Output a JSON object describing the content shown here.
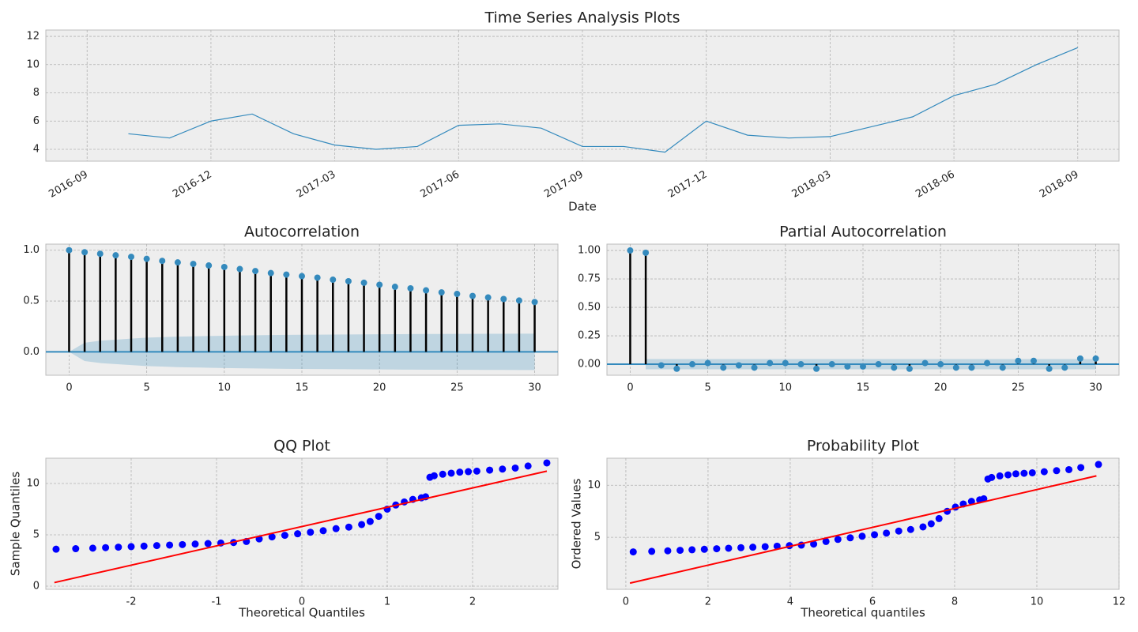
{
  "chart_data": [
    {
      "type": "line",
      "title": "Time Series Analysis Plots",
      "xlabel": "Date",
      "x": [
        "2016-10",
        "2016-11",
        "2016-12",
        "2017-01",
        "2017-02",
        "2017-03",
        "2017-04",
        "2017-05",
        "2017-06",
        "2017-07",
        "2017-08",
        "2017-09",
        "2017-10",
        "2017-11",
        "2017-12",
        "2018-01",
        "2018-02",
        "2018-03",
        "2018-04",
        "2018-05",
        "2018-06",
        "2018-07",
        "2018-08",
        "2018-09"
      ],
      "values": [
        5.1,
        4.8,
        6.0,
        6.5,
        5.1,
        4.3,
        4.0,
        4.2,
        5.7,
        5.8,
        5.5,
        4.2,
        4.2,
        3.8,
        6.0,
        5.0,
        4.8,
        4.9,
        5.6,
        6.3,
        7.8,
        8.6,
        10.0,
        11.2
      ],
      "color": "#348abd",
      "xlim": [
        "2016-08",
        "2018-10"
      ],
      "xticks": [
        "2016-09",
        "2016-12",
        "2017-03",
        "2017-06",
        "2017-09",
        "2017-12",
        "2018-03",
        "2018-06",
        "2018-09"
      ],
      "ylim": [
        3.16,
        12.45
      ],
      "yticks": [
        4,
        6,
        8,
        10,
        12
      ],
      "grid": true
    },
    {
      "type": "stem",
      "title": "Autocorrelation",
      "x": [
        0,
        1,
        2,
        3,
        4,
        5,
        6,
        7,
        8,
        9,
        10,
        11,
        12,
        13,
        14,
        15,
        16,
        17,
        18,
        19,
        20,
        21,
        22,
        23,
        24,
        25,
        26,
        27,
        28,
        29,
        30
      ],
      "values": [
        1.0,
        0.98,
        0.965,
        0.95,
        0.935,
        0.915,
        0.895,
        0.88,
        0.865,
        0.85,
        0.835,
        0.815,
        0.795,
        0.775,
        0.76,
        0.745,
        0.73,
        0.71,
        0.695,
        0.68,
        0.66,
        0.64,
        0.625,
        0.605,
        0.585,
        0.57,
        0.55,
        0.535,
        0.52,
        0.505,
        0.49
      ],
      "confidence": [
        0.0,
        0.09,
        0.11,
        0.12,
        0.13,
        0.14,
        0.145,
        0.15,
        0.153,
        0.156,
        0.159,
        0.161,
        0.163,
        0.165,
        0.167,
        0.168,
        0.169,
        0.17,
        0.171,
        0.172,
        0.173,
        0.174,
        0.175,
        0.176,
        0.176,
        0.177,
        0.177,
        0.178,
        0.178,
        0.179,
        0.179
      ],
      "color": "#348abd",
      "xlim": [
        -1.5,
        31.5
      ],
      "xticks": [
        0,
        5,
        10,
        15,
        20,
        25,
        30
      ],
      "ylim": [
        -0.23,
        1.06
      ],
      "yticks": [
        {
          "value": 0,
          "label": "0.0"
        },
        {
          "value": 0.5,
          "label": "0.5"
        },
        {
          "value": 1,
          "label": "1.0"
        }
      ],
      "grid": true
    },
    {
      "type": "stem",
      "title": "Partial Autocorrelation",
      "x": [
        0,
        1,
        2,
        3,
        4,
        5,
        6,
        7,
        8,
        9,
        10,
        11,
        12,
        13,
        14,
        15,
        16,
        17,
        18,
        19,
        20,
        21,
        22,
        23,
        24,
        25,
        26,
        27,
        28,
        29,
        30
      ],
      "values": [
        1.0,
        0.98,
        -0.01,
        -0.04,
        0.0,
        0.01,
        -0.03,
        -0.01,
        -0.03,
        0.01,
        0.01,
        0.0,
        -0.04,
        0.0,
        -0.02,
        -0.02,
        0.0,
        -0.03,
        -0.04,
        0.01,
        0.0,
        -0.03,
        -0.03,
        0.01,
        -0.03,
        0.03,
        0.03,
        -0.04,
        -0.03,
        0.05,
        0.05
      ],
      "confidence": [
        null,
        0.045,
        0.045,
        0.045,
        0.045,
        0.045,
        0.045,
        0.045,
        0.045,
        0.045,
        0.045,
        0.045,
        0.045,
        0.045,
        0.045,
        0.045,
        0.045,
        0.045,
        0.045,
        0.045,
        0.045,
        0.045,
        0.045,
        0.045,
        0.045,
        0.045,
        0.045,
        0.045,
        0.045,
        0.045,
        0.045
      ],
      "color": "#348abd",
      "xlim": [
        -1.5,
        31.5
      ],
      "xticks": [
        0,
        5,
        10,
        15,
        20,
        25,
        30
      ],
      "ylim": [
        -0.097,
        1.056
      ],
      "yticks": [
        {
          "value": 0,
          "label": "0.00"
        },
        {
          "value": 0.25,
          "label": "0.25"
        },
        {
          "value": 0.5,
          "label": "0.50"
        },
        {
          "value": 0.75,
          "label": "0.75"
        },
        {
          "value": 1,
          "label": "1.00"
        }
      ],
      "grid": true
    },
    {
      "type": "scatter",
      "title": "QQ Plot",
      "xlabel": "Theoretical Quantiles",
      "ylabel": "Sample Quantiles",
      "x": [
        -2.88,
        -2.65,
        -2.45,
        -2.3,
        -2.15,
        -2.0,
        -1.85,
        -1.7,
        -1.55,
        -1.4,
        -1.25,
        -1.1,
        -0.95,
        -0.8,
        -0.65,
        -0.5,
        -0.35,
        -0.2,
        -0.05,
        0.1,
        0.25,
        0.4,
        0.55,
        0.7,
        0.8,
        0.9,
        1.0,
        1.1,
        1.2,
        1.3,
        1.4,
        1.45,
        1.5,
        1.55,
        1.65,
        1.75,
        1.85,
        1.95,
        2.05,
        2.2,
        2.35,
        2.5,
        2.65,
        2.87
      ],
      "values": [
        3.6,
        3.65,
        3.7,
        3.75,
        3.8,
        3.85,
        3.9,
        3.95,
        4.0,
        4.05,
        4.1,
        4.15,
        4.2,
        4.25,
        4.35,
        4.6,
        4.8,
        4.95,
        5.1,
        5.25,
        5.4,
        5.6,
        5.75,
        6.0,
        6.3,
        6.8,
        7.5,
        7.9,
        8.2,
        8.45,
        8.6,
        8.7,
        10.6,
        10.75,
        10.9,
        11.0,
        11.1,
        11.15,
        11.2,
        11.3,
        11.4,
        11.5,
        11.7,
        12.0
      ],
      "color": "#0000ff",
      "fit_line": {
        "x": [
          -2.9,
          2.87
        ],
        "y": [
          0.35,
          11.2
        ],
        "color": "#ff0000"
      },
      "xlim": [
        -3.0,
        3.0
      ],
      "xticks": [
        -2,
        -1,
        0,
        1,
        2
      ],
      "ylim": [
        -0.31,
        12.46
      ],
      "yticks": [
        0,
        5,
        10
      ],
      "grid": true
    },
    {
      "type": "scatter",
      "title": "Probability Plot",
      "xlabel": "Theoretical quantiles",
      "ylabel": "Ordered Values",
      "x": [
        0.18,
        0.63,
        1.02,
        1.32,
        1.61,
        1.91,
        2.21,
        2.5,
        2.8,
        3.09,
        3.39,
        3.68,
        3.98,
        4.27,
        4.57,
        4.87,
        5.16,
        5.46,
        5.75,
        6.05,
        6.34,
        6.64,
        6.93,
        7.23,
        7.43,
        7.62,
        7.82,
        8.02,
        8.21,
        8.41,
        8.61,
        8.71,
        8.81,
        8.9,
        9.1,
        9.3,
        9.49,
        9.69,
        9.89,
        10.18,
        10.48,
        10.78,
        11.07,
        11.5
      ],
      "values": [
        3.6,
        3.65,
        3.7,
        3.75,
        3.8,
        3.85,
        3.9,
        3.95,
        4.0,
        4.05,
        4.1,
        4.15,
        4.2,
        4.25,
        4.35,
        4.6,
        4.8,
        4.95,
        5.1,
        5.25,
        5.4,
        5.6,
        5.75,
        6.0,
        6.3,
        6.8,
        7.5,
        7.9,
        8.2,
        8.45,
        8.6,
        8.7,
        10.6,
        10.75,
        10.9,
        11.0,
        11.1,
        11.15,
        11.2,
        11.3,
        11.4,
        11.5,
        11.7,
        12.0
      ],
      "color": "#0000ff",
      "fit_line": {
        "x": [
          0.1,
          11.45
        ],
        "y": [
          0.6,
          10.9
        ],
        "color": "#ff0000"
      },
      "xlim": [
        -0.46,
        12.0
      ],
      "xticks": [
        0,
        2,
        4,
        6,
        8,
        10,
        12
      ],
      "ylim": [
        0.0,
        12.6
      ],
      "yticks": [
        5,
        10
      ],
      "grid": true
    }
  ]
}
